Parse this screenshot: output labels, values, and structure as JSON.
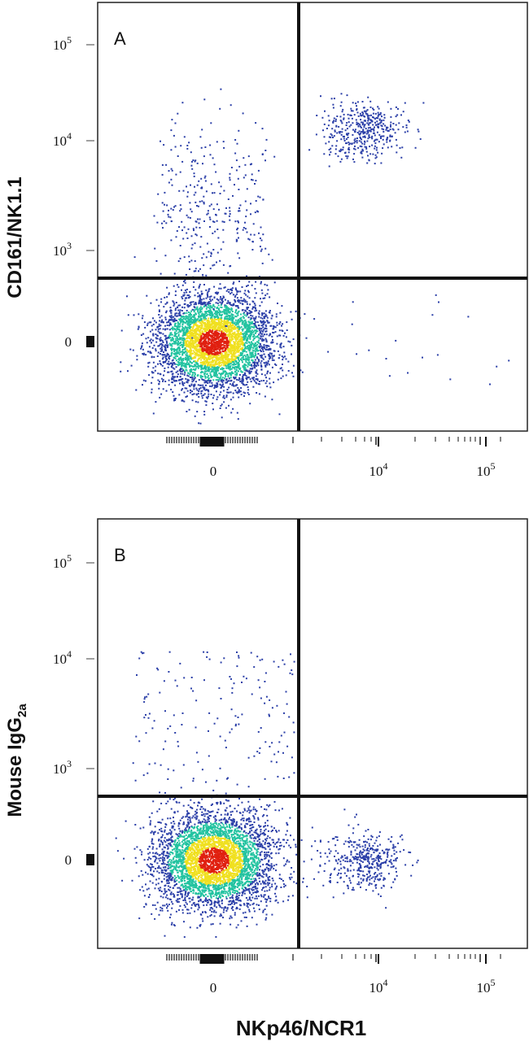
{
  "chart_data": [
    {
      "type": "scatter",
      "panel_label": "A",
      "xlabel": "",
      "ylabel": "CD161/NK1.1",
      "x_scale": "biexponential",
      "y_scale": "biexponential",
      "x_ticks": [
        {
          "value": 0,
          "base": "0",
          "exp": ""
        },
        {
          "value": 10000,
          "base": "10",
          "exp": "4"
        },
        {
          "value": 100000,
          "base": "10",
          "exp": "5"
        }
      ],
      "y_ticks": [
        {
          "value": 0,
          "base": "0",
          "exp": ""
        },
        {
          "value": 1000,
          "base": "10",
          "exp": "3"
        },
        {
          "value": 10000,
          "base": "10",
          "exp": "4"
        },
        {
          "value": 100000,
          "base": "10",
          "exp": "5"
        }
      ],
      "gate": {
        "x": 1400,
        "y": 550
      },
      "colors": {
        "low": "#2b3fa8",
        "mid": "#22c3a0",
        "high": "#f0e020",
        "peak": "#e02010"
      },
      "populations": [
        {
          "name": "double-negative",
          "x_center": 0,
          "y_center": 0,
          "density": "high",
          "count": 4200
        },
        {
          "name": "CD161+ NKp46-",
          "x_center": 0,
          "y_center": 2500,
          "density": "low",
          "count": 320
        },
        {
          "name": "CD161+ NKp46+",
          "x_center": 6000,
          "y_center": 13000,
          "density": "medium",
          "count": 420
        },
        {
          "name": "NKp46+ CD161-",
          "x_center": 30000,
          "y_center": 0,
          "density": "sparse",
          "count": 18
        }
      ]
    },
    {
      "type": "scatter",
      "panel_label": "B",
      "xlabel": "NKp46/NCR1",
      "ylabel": "Mouse IgG",
      "ylabel_sub": "2a",
      "x_scale": "biexponential",
      "y_scale": "biexponential",
      "x_ticks": [
        {
          "value": 0,
          "base": "0",
          "exp": ""
        },
        {
          "value": 10000,
          "base": "10",
          "exp": "4"
        },
        {
          "value": 100000,
          "base": "10",
          "exp": "5"
        }
      ],
      "y_ticks": [
        {
          "value": 0,
          "base": "0",
          "exp": ""
        },
        {
          "value": 1000,
          "base": "10",
          "exp": "3"
        },
        {
          "value": 10000,
          "base": "10",
          "exp": "4"
        },
        {
          "value": 100000,
          "base": "10",
          "exp": "5"
        }
      ],
      "gate": {
        "x": 1400,
        "y": 550
      },
      "colors": {
        "low": "#2b3fa8",
        "mid": "#22c3a0",
        "high": "#f0e020",
        "peak": "#e02010"
      },
      "populations": [
        {
          "name": "double-negative",
          "x_center": 0,
          "y_center": 0,
          "density": "high",
          "count": 4200
        },
        {
          "name": "isotype upper-left",
          "x_center": 0,
          "y_center": 3000,
          "density": "sparse",
          "count": 160
        },
        {
          "name": "NKp46+ isotype-",
          "x_center": 6000,
          "y_center": 0,
          "density": "medium",
          "count": 420
        }
      ]
    }
  ]
}
